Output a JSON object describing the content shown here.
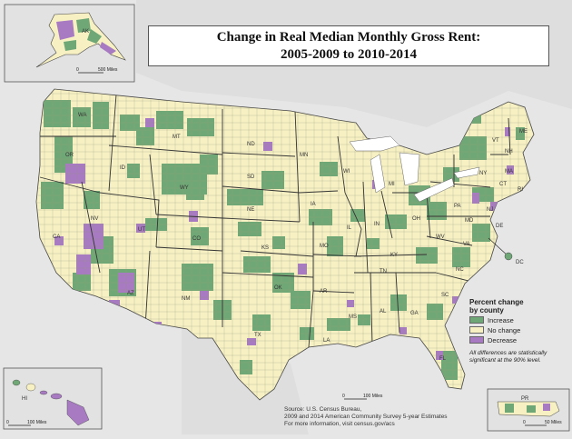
{
  "title": {
    "line1": "Change in Real Median Monthly Gross Rent:",
    "line2": "2005-2009 to 2010-2014"
  },
  "colors": {
    "increase": "#6fa876",
    "no_change": "#f6f0c3",
    "decrease": "#a77ac2",
    "background": "#e6e6e6",
    "water_lines": "#ffffff"
  },
  "legend": {
    "title": "Percent change by county",
    "items": [
      {
        "label": "Increase",
        "key": "increase"
      },
      {
        "label": "No change",
        "key": "no_change"
      },
      {
        "label": "Decrease",
        "key": "decrease"
      }
    ],
    "note": "All differences are statistically significant at the 90% level."
  },
  "source": {
    "line1": "Source: U.S. Census Bureau,",
    "line2": "2009 and 2014 American Community Survey 5-year Estimates",
    "line3": "For more information, visit census.gov/acs"
  },
  "scales": {
    "alaska": {
      "zero": "0",
      "distance": "500 Miles"
    },
    "main": {
      "zero": "0",
      "distance": "100 Miles"
    },
    "hawaii": {
      "zero": "0",
      "distance": "100 Miles"
    },
    "puerto_rico": {
      "zero": "0",
      "distance": "50 Miles"
    }
  },
  "state_labels": [
    "WA",
    "OR",
    "ID",
    "MT",
    "WY",
    "NV",
    "CA",
    "UT",
    "AZ",
    "CO",
    "NM",
    "ND",
    "SD",
    "NE",
    "KS",
    "OK",
    "TX",
    "MN",
    "IA",
    "MO",
    "AR",
    "LA",
    "WI",
    "IL",
    "MI",
    "IN",
    "OH",
    "KY",
    "TN",
    "MS",
    "AL",
    "GA",
    "FL",
    "SC",
    "NC",
    "VA",
    "WV",
    "PA",
    "NY",
    "VT",
    "NH",
    "ME",
    "MA",
    "CT",
    "RI",
    "NJ",
    "DE",
    "MD",
    "DC",
    "AK",
    "HI",
    "PR"
  ]
}
